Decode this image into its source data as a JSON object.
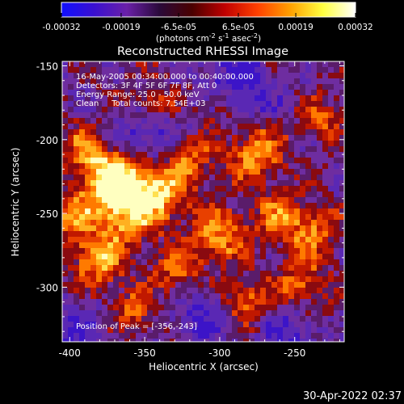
{
  "colorbar": {
    "tick_labels": [
      "-0.00032",
      "-0.00019",
      "-6.5e-05",
      "6.5e-05",
      "0.00019",
      "0.00032"
    ],
    "tick_values": [
      -0.00032,
      -0.00019,
      -6.5e-05,
      6.5e-05,
      0.00019,
      0.00032
    ],
    "range": [
      -0.00032,
      0.00032
    ],
    "unit_label_main": "(photons cm",
    "unit_sup1": "-2",
    "unit_mid1": " s",
    "unit_sup2": "-1",
    "unit_mid2": " asec",
    "unit_sup3": "-2",
    "unit_end": ")",
    "colormap": "red-temperature with blue-purple negatives",
    "colors": [
      "#1010ff",
      "#3a10d0",
      "#6a20a8",
      "#2a0a3a",
      "#4a0000",
      "#c00000",
      "#ff4000",
      "#ffa000",
      "#ffff40",
      "#ffffff"
    ]
  },
  "chart_data": {
    "type": "heatmap",
    "title": "Reconstructed RHESSI Image",
    "xlabel": "Heliocentric X (arcsec)",
    "ylabel": "Heliocentric Y (arcsec)",
    "xlim": [
      -405,
      -217
    ],
    "ylim": [
      -337,
      -147
    ],
    "x_ticks": [
      -400,
      -350,
      -300,
      -250
    ],
    "y_ticks": [
      -150,
      -200,
      -250,
      -300
    ],
    "x_tick_labels": [
      "-400",
      "-350",
      "-300",
      "-250"
    ],
    "y_tick_labels": [
      "-150",
      "-200",
      "-250",
      "-300"
    ],
    "annotations": [
      "16-May-2005 00:34:00.000 to 00:40:00.000",
      "Detectors: 3F 4F 5F 6F 7F 8F, Att 0",
      "Energy Range: 25.0 - 50.0 keV",
      "Clean     Total counts: 7.54E+03"
    ],
    "peak_label": "Position of Peak = [-356,-243]",
    "peak_position": [
      -356,
      -243
    ],
    "grid": false
  },
  "footer": {
    "timestamp": "30-Apr-2022 02:37"
  }
}
